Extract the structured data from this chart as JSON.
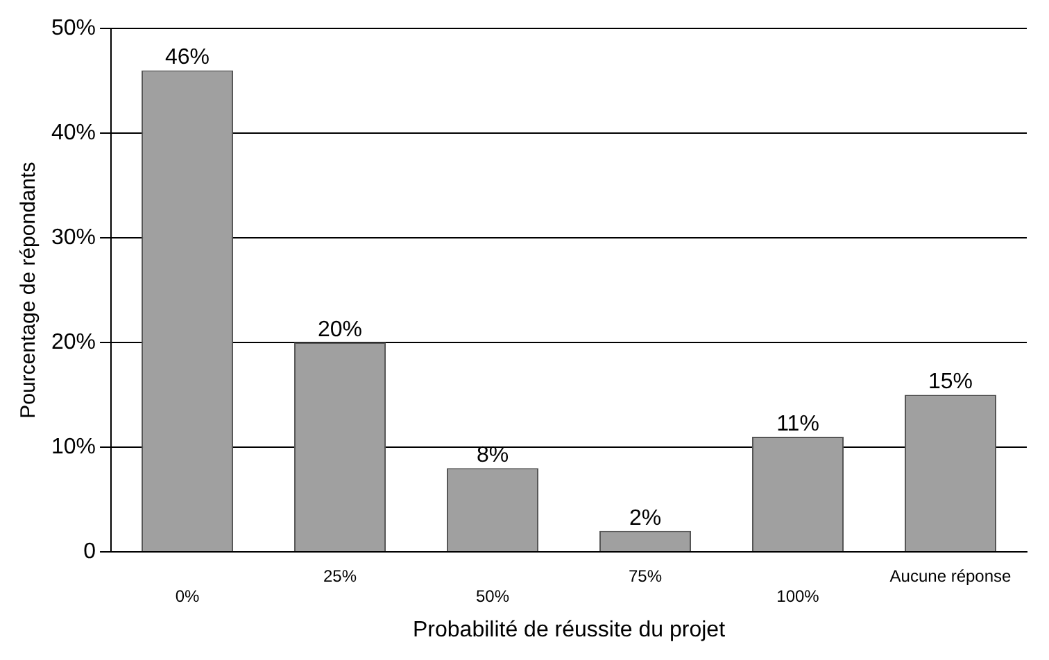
{
  "chart_data": {
    "type": "bar",
    "xlabel": "Probabilité de réussite du projet",
    "ylabel": "Pourcentage de répondants",
    "categories": [
      "0%",
      "25%",
      "50%",
      "75%",
      "100%",
      "Aucune réponse"
    ],
    "values": [
      46,
      20,
      8,
      2,
      11,
      15
    ],
    "value_labels": [
      "46%",
      "20%",
      "8%",
      "2%",
      "11%",
      "15%"
    ],
    "color": "#a0a0a0",
    "ylim": [
      0,
      50
    ],
    "yticks": [
      {
        "value": 0,
        "label": "0"
      },
      {
        "value": 10,
        "label": "10%"
      },
      {
        "value": 20,
        "label": "20%"
      },
      {
        "value": 30,
        "label": "30%"
      },
      {
        "value": 40,
        "label": "40%"
      },
      {
        "value": 50,
        "label": "50%"
      }
    ],
    "grid": "y",
    "legend": false
  }
}
